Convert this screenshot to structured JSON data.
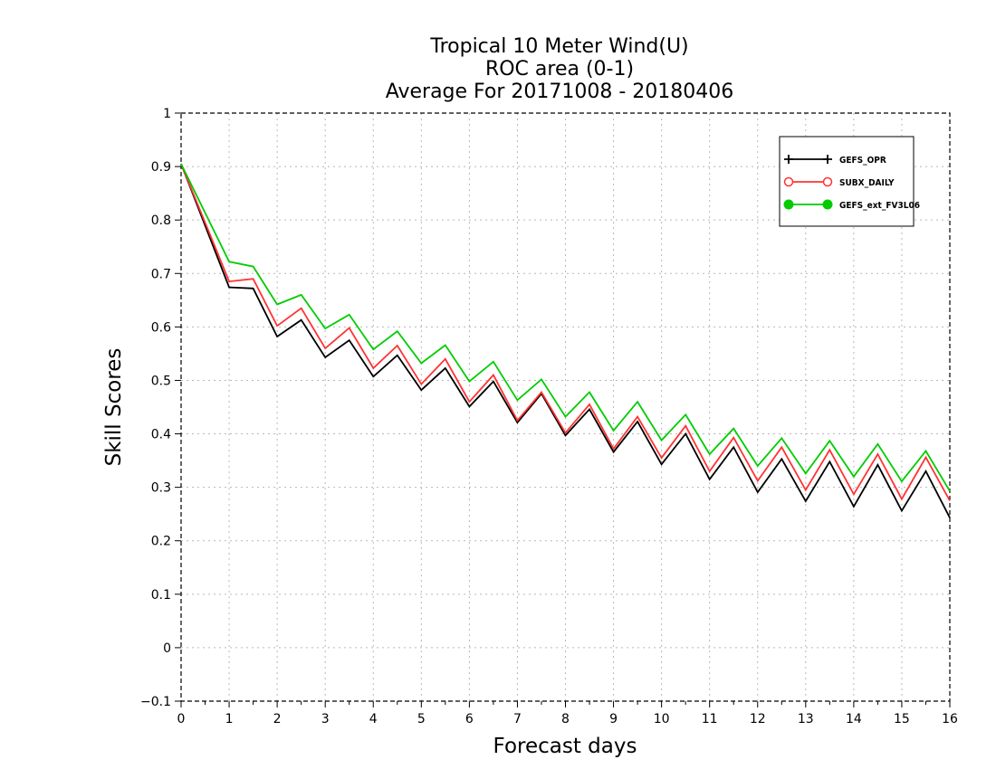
{
  "chart_data": {
    "type": "line",
    "title": [
      "Tropical 10 Meter Wind(U)",
      "ROC area (0-1)",
      "Average For 20171008 - 20180406"
    ],
    "xlabel": "Forecast days",
    "ylabel": "Skill Scores",
    "xlim": [
      0,
      16
    ],
    "ylim": [
      -0.1,
      1
    ],
    "xticks": [
      "0",
      "1",
      "2",
      "3",
      "4",
      "5",
      "6",
      "7",
      "8",
      "9",
      "10",
      "11",
      "12",
      "13",
      "14",
      "15",
      "16"
    ],
    "yticks": [
      "−0.1",
      "0",
      "0.1",
      "0.2",
      "0.3",
      "0.4",
      "0.5",
      "0.6",
      "0.7",
      "0.8",
      "0.9",
      "1"
    ],
    "grid": true,
    "legend_position": "top-right",
    "x": [
      0,
      1,
      1.5,
      2,
      2.5,
      3,
      3.5,
      4,
      4.5,
      5,
      5.5,
      6,
      6.5,
      7,
      7.5,
      8,
      8.5,
      9,
      9.5,
      10,
      10.5,
      11,
      11.5,
      12,
      12.5,
      13,
      13.5,
      14,
      14.5,
      15,
      15.5,
      16
    ],
    "series": [
      {
        "name": "GEFS_OPR",
        "color": "#000000",
        "marker": "plus",
        "values": [
          0.905,
          0.674,
          0.672,
          0.582,
          0.613,
          0.543,
          0.575,
          0.507,
          0.547,
          0.482,
          0.523,
          0.451,
          0.498,
          0.421,
          0.475,
          0.397,
          0.446,
          0.366,
          0.423,
          0.343,
          0.4,
          0.315,
          0.375,
          0.291,
          0.353,
          0.274,
          0.348,
          0.264,
          0.342,
          0.256,
          0.33,
          0.243
        ]
      },
      {
        "name": "SUBX_DAILY",
        "color": "#ff3333",
        "marker": "open-circle",
        "values": [
          0.905,
          0.685,
          0.69,
          0.602,
          0.635,
          0.56,
          0.598,
          0.523,
          0.565,
          0.493,
          0.54,
          0.46,
          0.51,
          0.425,
          0.478,
          0.402,
          0.455,
          0.372,
          0.432,
          0.355,
          0.415,
          0.33,
          0.393,
          0.312,
          0.375,
          0.295,
          0.37,
          0.287,
          0.362,
          0.278,
          0.356,
          0.275
        ]
      },
      {
        "name": "GEFS_ext_FV3L06",
        "color": "#00cc00",
        "marker": "filled-circle",
        "values": [
          0.905,
          0.722,
          0.713,
          0.642,
          0.66,
          0.597,
          0.623,
          0.558,
          0.592,
          0.532,
          0.566,
          0.498,
          0.535,
          0.463,
          0.502,
          0.432,
          0.478,
          0.406,
          0.46,
          0.388,
          0.436,
          0.362,
          0.41,
          0.34,
          0.392,
          0.326,
          0.387,
          0.32,
          0.381,
          0.311,
          0.368,
          0.293
        ]
      }
    ]
  }
}
